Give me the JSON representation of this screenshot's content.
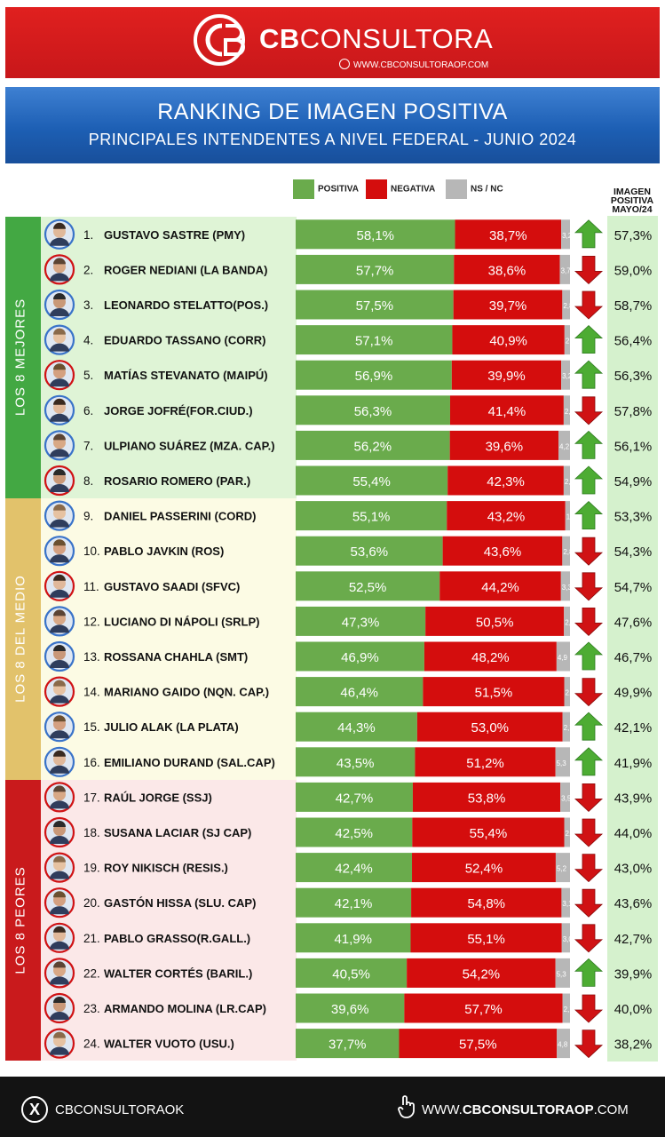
{
  "header": {
    "brand_bold": "CB",
    "brand_rest": "CONSULTORA",
    "site_small": "WWW.CBCONSULTORAOP.COM"
  },
  "title": {
    "main": "RANKING DE IMAGEN POSITIVA",
    "sub": "PRINCIPALES INTENDENTES A NIVEL FEDERAL - JUNIO 2024"
  },
  "prev_header": [
    "IMAGEN",
    "POSITIVA",
    "MAYO/24"
  ],
  "colors": {
    "positive": "#6aab4c",
    "negative": "#d40d0d",
    "nsnc": "#b7b7b7",
    "arrow_up": "#4dac33",
    "arrow_down": "#d01214",
    "best_band": "#43a843",
    "middle_band": "#e2c26b",
    "worst_band": "#c91a1c",
    "best_bg": "#dff4d6",
    "middle_bg": "#fcfbe4",
    "worst_bg": "#fbe8e8"
  },
  "groups": [
    {
      "label": "LOS 8 MEJORES",
      "start": 0,
      "end": 7,
      "tone": "best"
    },
    {
      "label": "LOS 8 DEL MEDIO",
      "start": 8,
      "end": 15,
      "tone": "middle"
    },
    {
      "label": "LOS 8 PEORES",
      "start": 16,
      "end": 23,
      "tone": "worst"
    }
  ],
  "chart_data": {
    "type": "bar",
    "stacked": true,
    "orientation": "horizontal",
    "value_unit": "%",
    "series": [
      {
        "name": "POSITIVA",
        "values": [
          58.1,
          57.7,
          57.5,
          57.1,
          56.9,
          56.3,
          56.2,
          55.4,
          55.1,
          53.6,
          52.5,
          47.3,
          46.9,
          46.4,
          44.3,
          43.5,
          42.7,
          42.5,
          42.4,
          42.1,
          41.9,
          40.5,
          39.6,
          37.7
        ]
      },
      {
        "name": "NEGATIVA",
        "values": [
          38.7,
          38.6,
          39.7,
          40.9,
          39.9,
          41.4,
          39.6,
          42.3,
          43.2,
          43.6,
          44.2,
          50.5,
          48.2,
          51.5,
          53.0,
          51.2,
          53.8,
          55.4,
          52.4,
          54.8,
          55.1,
          54.2,
          57.7,
          57.5
        ]
      },
      {
        "name": "NS / NC",
        "values": [
          3.2,
          3.7,
          2.8,
          2.0,
          3.2,
          2.3,
          4.2,
          2.3,
          1.7,
          2.8,
          3.3,
          2.2,
          4.9,
          2.1,
          2.7,
          5.3,
          3.5,
          2.1,
          5.2,
          3.1,
          3.0,
          5.3,
          2.7,
          4.8
        ]
      }
    ],
    "rows": [
      {
        "rank": "1.",
        "name": "GUSTAVO SASTRE (PMY)",
        "pos": "58,1%",
        "neg": "38,7%",
        "nsnc": "3,2",
        "trend": "up",
        "prev": "57,3%",
        "prev_value": 57.3
      },
      {
        "rank": "2.",
        "name": "ROGER NEDIANI (LA BANDA)",
        "pos": "57,7%",
        "neg": "38,6%",
        "nsnc": "3,7",
        "trend": "down",
        "prev": "59,0%",
        "prev_value": 59.0
      },
      {
        "rank": "3.",
        "name": "LEONARDO STELATTO(POS.)",
        "pos": "57,5%",
        "neg": "39,7%",
        "nsnc": "2,8",
        "trend": "down",
        "prev": "58,7%",
        "prev_value": 58.7
      },
      {
        "rank": "4.",
        "name": "EDUARDO TASSANO (CORR)",
        "pos": "57,1%",
        "neg": "40,9%",
        "nsnc": "2,0",
        "trend": "up",
        "prev": "56,4%",
        "prev_value": 56.4
      },
      {
        "rank": "5.",
        "name": "MATÍAS STEVANATO (MAIPÚ)",
        "pos": "56,9%",
        "neg": "39,9%",
        "nsnc": "3,2",
        "trend": "up",
        "prev": "56,3%",
        "prev_value": 56.3
      },
      {
        "rank": "6.",
        "name": "JORGE JOFRÉ(FOR.CIUD.)",
        "pos": "56,3%",
        "neg": "41,4%",
        "nsnc": "2,3",
        "trend": "down",
        "prev": "57,8%",
        "prev_value": 57.8
      },
      {
        "rank": "7.",
        "name": "ULPIANO SUÁREZ (MZA. CAP.)",
        "pos": "56,2%",
        "neg": "39,6%",
        "nsnc": "4,2",
        "trend": "up",
        "prev": "56,1%",
        "prev_value": 56.1
      },
      {
        "rank": "8.",
        "name": "ROSARIO ROMERO (PAR.)",
        "pos": "55,4%",
        "neg": "42,3%",
        "nsnc": "2,3",
        "trend": "up",
        "prev": "54,9%",
        "prev_value": 54.9
      },
      {
        "rank": "9.",
        "name": "DANIEL PASSERINI (CORD)",
        "pos": "55,1%",
        "neg": "43,2%",
        "nsnc": "1,7",
        "trend": "up",
        "prev": "53,3%",
        "prev_value": 53.3
      },
      {
        "rank": "10.",
        "name": "PABLO JAVKIN (ROS)",
        "pos": "53,6%",
        "neg": "43,6%",
        "nsnc": "2,8",
        "trend": "down",
        "prev": "54,3%",
        "prev_value": 54.3
      },
      {
        "rank": "11.",
        "name": "GUSTAVO SAADI (SFVC)",
        "pos": "52,5%",
        "neg": "44,2%",
        "nsnc": "3,3",
        "trend": "down",
        "prev": "54,7%",
        "prev_value": 54.7
      },
      {
        "rank": "12.",
        "name": "LUCIANO DI NÁPOLI (SRLP)",
        "pos": "47,3%",
        "neg": "50,5%",
        "nsnc": "2,2",
        "trend": "down",
        "prev": "47,6%",
        "prev_value": 47.6
      },
      {
        "rank": "13.",
        "name": "ROSSANA CHAHLA (SMT)",
        "pos": "46,9%",
        "neg": "48,2%",
        "nsnc": "4,9",
        "trend": "up",
        "prev": "46,7%",
        "prev_value": 46.7
      },
      {
        "rank": "14.",
        "name": "MARIANO GAIDO (NQN. CAP.)",
        "pos": "46,4%",
        "neg": "51,5%",
        "nsnc": "2,1",
        "trend": "down",
        "prev": "49,9%",
        "prev_value": 49.9
      },
      {
        "rank": "15.",
        "name": "JULIO ALAK (LA PLATA)",
        "pos": "44,3%",
        "neg": "53,0%",
        "nsnc": "2,7",
        "trend": "up",
        "prev": "42,1%",
        "prev_value": 42.1
      },
      {
        "rank": "16.",
        "name": "EMILIANO DURAND (SAL.CAP)",
        "pos": "43,5%",
        "neg": "51,2%",
        "nsnc": "5,3",
        "trend": "up",
        "prev": "41,9%",
        "prev_value": 41.9
      },
      {
        "rank": "17.",
        "name": "RAÚL JORGE (SSJ)",
        "pos": "42,7%",
        "neg": "53,8%",
        "nsnc": "3,5",
        "trend": "down",
        "prev": "43,9%",
        "prev_value": 43.9
      },
      {
        "rank": "18.",
        "name": "SUSANA LACIAR (SJ CAP)",
        "pos": "42,5%",
        "neg": "55,4%",
        "nsnc": "2,1",
        "trend": "down",
        "prev": "44,0%",
        "prev_value": 44.0
      },
      {
        "rank": "19.",
        "name": "ROY NIKISCH (RESIS.)",
        "pos": "42,4%",
        "neg": "52,4%",
        "nsnc": "5,2",
        "trend": "down",
        "prev": "43,0%",
        "prev_value": 43.0
      },
      {
        "rank": "20.",
        "name": "GASTÓN HISSA (SLU. CAP)",
        "pos": "42,1%",
        "neg": "54,8%",
        "nsnc": "3,1",
        "trend": "down",
        "prev": "43,6%",
        "prev_value": 43.6
      },
      {
        "rank": "21.",
        "name": "PABLO GRASSO(R.GALL.)",
        "pos": "41,9%",
        "neg": "55,1%",
        "nsnc": "3,0",
        "trend": "down",
        "prev": "42,7%",
        "prev_value": 42.7
      },
      {
        "rank": "22.",
        "name": "WALTER CORTÉS (BARIL.)",
        "pos": "40,5%",
        "neg": "54,2%",
        "nsnc": "5,3",
        "trend": "up",
        "prev": "39,9%",
        "prev_value": 39.9
      },
      {
        "rank": "23.",
        "name": "ARMANDO MOLINA (LR.CAP)",
        "pos": "39,6%",
        "neg": "57,7%",
        "nsnc": "2,7",
        "trend": "down",
        "prev": "40,0%",
        "prev_value": 40.0
      },
      {
        "rank": "24.",
        "name": "WALTER VUOTO (USU.)",
        "pos": "37,7%",
        "neg": "57,5%",
        "nsnc": "4,8",
        "trend": "down",
        "prev": "38,2%",
        "prev_value": 38.2
      }
    ]
  },
  "footer": {
    "x_letter": "X",
    "x_handle": "CBCONSULTORAOK",
    "url_prefix": "WWW.",
    "url_main": "CBCONSULTORAOP",
    "url_suffix": ".COM"
  }
}
